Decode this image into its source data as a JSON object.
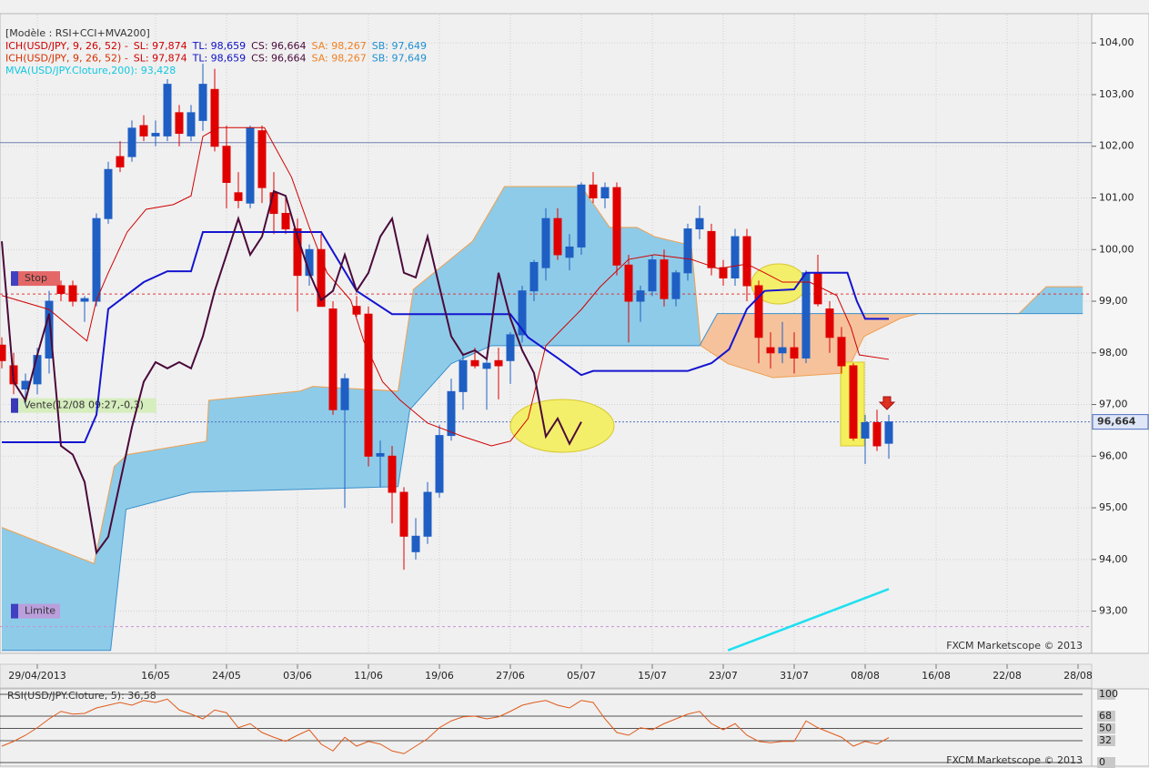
{
  "chart_data": {
    "type": "candlestick",
    "header": "[Modèle : RSI+CCI+MVA200]",
    "indicator_legend": [
      [
        {
          "text": "ICH(USD/JPY, 9, 26, 52) -",
          "color": "#d00000"
        },
        {
          "text": "SL: 97,874",
          "color": "#d00000"
        },
        {
          "text": "TL: 98,659",
          "color": "#1010c8"
        },
        {
          "text": "CS: 96,664",
          "color": "#4a0a3a"
        },
        {
          "text": "SA: 98,267",
          "color": "#f08020"
        },
        {
          "text": "SB: 97,649",
          "color": "#2090d0"
        }
      ],
      [
        {
          "text": "ICH(USD/JPY, 9, 26, 52) -",
          "color": "#d83000"
        },
        {
          "text": "SL: 97,874",
          "color": "#d00000"
        },
        {
          "text": "TL: 98,659",
          "color": "#1010c8"
        },
        {
          "text": "CS: 96,664",
          "color": "#4a0a3a"
        },
        {
          "text": "SA: 98,267",
          "color": "#f08020"
        },
        {
          "text": "SB: 97,649",
          "color": "#2090d0"
        }
      ],
      [
        {
          "text": "MVA(USD/JPY.Cloture,200): 93,428",
          "color": "#10c8e0"
        }
      ]
    ],
    "categories": [
      null,
      null,
      null,
      "29/04/2013",
      null,
      null,
      null,
      null,
      null,
      null,
      null,
      null,
      null,
      "16/05",
      null,
      null,
      null,
      null,
      null,
      "24/05",
      null,
      null,
      null,
      null,
      null,
      "03/06",
      null,
      null,
      null,
      null,
      null,
      "11/06",
      null,
      null,
      null,
      null,
      null,
      "19/06",
      null,
      null,
      null,
      null,
      null,
      "27/06",
      null,
      null,
      null,
      null,
      null,
      "05/07",
      null,
      null,
      null,
      null,
      null,
      "15/07",
      null,
      null,
      null,
      null,
      null,
      "23/07",
      null,
      null,
      null,
      null,
      null,
      "31/07",
      null,
      null,
      null,
      null,
      null,
      "08/08",
      null,
      null,
      null,
      null,
      null,
      "16/08",
      null,
      null,
      null,
      null,
      null,
      "22/08",
      null,
      null,
      null,
      null,
      null,
      "28/08",
      null
    ],
    "open": [
      98.15,
      97.75,
      97.3,
      97.4,
      97.9,
      99.3,
      99.3,
      99.0,
      99.0,
      100.6,
      101.8,
      101.8,
      102.4,
      102.2,
      102.2,
      102.65,
      102.2,
      102.5,
      103.1,
      102.0,
      101.1,
      100.9,
      102.3,
      101.1,
      100.7,
      100.4,
      99.5,
      100.0,
      98.85,
      96.9,
      98.9,
      98.75,
      96.0,
      96.0,
      95.3,
      94.15,
      94.45,
      95.3,
      96.4,
      97.25,
      97.85,
      97.7,
      97.85,
      97.85,
      98.35,
      99.2,
      99.65,
      100.6,
      99.85,
      100.05,
      101.25,
      101.0,
      101.2,
      99.7,
      99.0,
      99.2,
      99.8,
      99.05,
      99.55,
      100.4,
      100.35,
      99.65,
      99.45,
      100.25,
      99.3,
      98.1,
      98.0,
      98.1,
      97.9,
      99.55,
      98.85,
      98.3,
      97.75,
      96.35,
      96.65,
      96.25,
      null,
      null,
      null,
      null,
      null,
      null,
      null,
      null,
      null,
      null,
      null,
      null,
      null,
      null,
      null,
      null,
      null
    ],
    "high": [
      98.3,
      98.0,
      97.6,
      98.1,
      99.2,
      99.4,
      99.4,
      99.1,
      100.7,
      101.7,
      102.1,
      102.5,
      102.6,
      102.5,
      103.3,
      102.8,
      102.8,
      103.6,
      103.5,
      102.4,
      101.5,
      102.4,
      102.4,
      101.5,
      101.0,
      100.6,
      100.1,
      100.3,
      99.0,
      97.6,
      99.1,
      98.9,
      96.3,
      96.2,
      95.4,
      94.8,
      95.5,
      96.6,
      97.5,
      98.0,
      98.1,
      97.9,
      98.1,
      98.4,
      99.3,
      99.8,
      100.8,
      100.8,
      100.3,
      101.3,
      101.5,
      101.3,
      101.3,
      99.9,
      99.3,
      99.9,
      100.0,
      99.6,
      100.5,
      100.85,
      100.5,
      99.8,
      100.4,
      100.4,
      99.4,
      98.4,
      98.6,
      98.4,
      99.6,
      99.9,
      99.0,
      98.5,
      97.8,
      96.8,
      96.9,
      96.8,
      null,
      null,
      null,
      null,
      null,
      null,
      null,
      null,
      null,
      null,
      null,
      null,
      null,
      null,
      null,
      null,
      null
    ],
    "low": [
      97.7,
      97.2,
      97.0,
      97.2,
      97.6,
      99.0,
      98.9,
      98.6,
      98.9,
      100.5,
      101.5,
      101.7,
      102.1,
      102.0,
      102.1,
      102.0,
      102.1,
      102.3,
      101.9,
      100.8,
      100.8,
      100.8,
      100.9,
      100.3,
      100.3,
      98.8,
      99.3,
      98.9,
      96.8,
      95.0,
      98.7,
      95.8,
      95.4,
      94.7,
      93.8,
      94.0,
      94.3,
      95.2,
      96.3,
      96.9,
      97.7,
      96.9,
      97.1,
      97.4,
      98.2,
      99.0,
      99.4,
      99.8,
      99.6,
      99.9,
      100.9,
      100.8,
      99.5,
      98.2,
      98.6,
      99.1,
      98.9,
      98.9,
      99.4,
      100.2,
      99.5,
      99.3,
      99.3,
      99.0,
      97.8,
      97.7,
      97.8,
      97.6,
      97.8,
      98.9,
      98.0,
      97.6,
      96.3,
      95.85,
      96.1,
      95.95,
      null,
      null,
      null,
      null,
      null,
      null,
      null,
      null,
      null,
      null,
      null,
      null,
      null,
      null,
      null,
      null,
      null
    ],
    "close": [
      97.85,
      97.4,
      97.45,
      97.95,
      99.0,
      99.15,
      99.0,
      99.05,
      100.6,
      101.55,
      101.6,
      102.35,
      102.2,
      102.25,
      103.2,
      102.25,
      102.65,
      103.2,
      102.0,
      101.3,
      100.95,
      102.35,
      101.2,
      100.7,
      100.4,
      99.5,
      100.0,
      98.9,
      96.9,
      97.5,
      98.75,
      96.0,
      96.05,
      95.3,
      94.45,
      94.45,
      95.3,
      96.4,
      97.25,
      97.85,
      97.75,
      97.8,
      97.75,
      98.35,
      99.2,
      99.75,
      100.6,
      99.9,
      100.05,
      101.25,
      101.0,
      101.2,
      99.7,
      99.0,
      99.2,
      99.8,
      99.05,
      99.55,
      100.4,
      100.6,
      99.65,
      99.45,
      100.25,
      99.3,
      98.3,
      98.0,
      98.1,
      97.9,
      99.55,
      98.95,
      98.3,
      97.75,
      96.35,
      96.65,
      96.2,
      96.664,
      null,
      null,
      null,
      null,
      null,
      null,
      null,
      null,
      null,
      null,
      null,
      null,
      null,
      null,
      null,
      null,
      null
    ],
    "up_color": "#1f5fc4",
    "down_color": "#e00000",
    "ylim": [
      92.2,
      104.55
    ],
    "yticks": [
      {
        "value": 93,
        "label": "93,00"
      },
      {
        "value": 94,
        "label": "94,00"
      },
      {
        "value": 95,
        "label": "95,00"
      },
      {
        "value": 96,
        "label": "96,00"
      },
      {
        "value": 97,
        "label": "97,00"
      },
      {
        "value": 98,
        "label": "98,00"
      },
      {
        "value": 99,
        "label": "99,00"
      },
      {
        "value": 100,
        "label": "100,00"
      },
      {
        "value": 101,
        "label": "101,00"
      },
      {
        "value": 102,
        "label": "102,00"
      },
      {
        "value": 103,
        "label": "103,00"
      },
      {
        "value": 104,
        "label": "104,00"
      }
    ],
    "grid": true,
    "cloud": {
      "a": {
        "color": "#f0a050",
        "x": [
          0,
          7.8,
          9.5,
          10.6,
          17.3,
          17.5,
          25.2,
          26.3,
          33.5,
          34.8,
          39.8,
          42.5,
          49,
          51.4,
          53.7,
          55.2,
          58.3,
          59.1,
          61.4,
          65.2,
          71.4,
          72.9,
          76,
          77.5,
          86,
          88.3,
          91.4
        ],
        "values": [
          94.62,
          93.92,
          95.8,
          96.03,
          96.29,
          97.08,
          97.26,
          97.35,
          97.26,
          99.23,
          100.16,
          101.22,
          101.22,
          100.43,
          100.43,
          100.25,
          100.08,
          98.14,
          97.79,
          97.52,
          97.61,
          98.32,
          98.67,
          98.76,
          98.76,
          99.28,
          99.28
        ]
      },
      "b": {
        "color": "#3a90cc",
        "x": [
          0,
          9.2,
          10.5,
          16,
          33.5,
          34.5,
          38,
          41.4,
          59,
          60.5,
          91.4
        ],
        "values": [
          92.24,
          92.24,
          94.97,
          95.3,
          95.41,
          96.9,
          97.79,
          98.14,
          98.14,
          98.76,
          98.76
        ]
      },
      "up_fill": "#8ecbe8",
      "down_fill": "#f5c29c"
    },
    "overlays": [
      {
        "color": "#1414d0",
        "x": [
          0,
          7,
          8,
          9,
          12,
          14,
          16,
          17,
          27,
          30,
          33,
          43,
          44.5,
          47,
          49,
          50,
          58,
          60,
          61.5,
          63,
          64.5,
          67,
          68,
          71.5,
          72.3,
          73,
          75
        ],
        "values": [
          96.27,
          96.27,
          96.8,
          98.85,
          99.37,
          99.58,
          99.58,
          100.34,
          100.34,
          99.2,
          98.75,
          98.75,
          98.3,
          97.9,
          97.57,
          97.65,
          97.65,
          97.8,
          98.07,
          98.85,
          99.2,
          99.23,
          99.55,
          99.55,
          99.0,
          98.659,
          98.659
        ]
      },
      {
        "color": "#d00000",
        "x": [
          0,
          4,
          7.2,
          8,
          9,
          10.6,
          12.2,
          14.5,
          16,
          17,
          18.3,
          22.2,
          24.5,
          26,
          27.5,
          29.5,
          30.6,
          32.2,
          33.7,
          36,
          39,
          41.4,
          43,
          44.5,
          46,
          49,
          50.6,
          53,
          55.2,
          58.3,
          60.6,
          63,
          64.5,
          66,
          68.3,
          70.6,
          71.8,
          72.5,
          75
        ],
        "values": [
          99.11,
          98.84,
          98.23,
          99.02,
          99.55,
          100.34,
          100.78,
          100.87,
          101.04,
          102.19,
          102.36,
          102.36,
          101.4,
          100.43,
          99.55,
          99.02,
          98.23,
          97.44,
          97.08,
          96.64,
          96.38,
          96.2,
          96.29,
          96.73,
          98.14,
          98.84,
          99.28,
          99.81,
          99.9,
          99.81,
          99.63,
          99.72,
          99.55,
          99.37,
          99.37,
          99.11,
          98.49,
          97.96,
          97.874
        ]
      },
      {
        "color": "#4a0a3a",
        "x": [
          0,
          1,
          2,
          3,
          4,
          5,
          6,
          7,
          8,
          9,
          10,
          11,
          12,
          13,
          14,
          15,
          16,
          17,
          18,
          19,
          20,
          21,
          22,
          23,
          24,
          25,
          26,
          27,
          28,
          29,
          30,
          31,
          32,
          33,
          34,
          35,
          36,
          37,
          38,
          39,
          40,
          41,
          42,
          43,
          44,
          45,
          46,
          47,
          48,
          49
        ],
        "values": [
          100.16,
          97.44,
          97.08,
          97.96,
          98.76,
          96.2,
          96.03,
          95.5,
          94.13,
          94.44,
          95.5,
          96.56,
          97.44,
          97.82,
          97.7,
          97.82,
          97.7,
          98.32,
          99.2,
          99.9,
          100.6,
          99.9,
          100.25,
          101.13,
          101.04,
          100.25,
          99.55,
          99.02,
          99.2,
          99.9,
          99.2,
          99.55,
          100.25,
          100.6,
          99.55,
          99.46,
          100.25,
          99.28,
          98.32,
          97.96,
          98.05,
          97.88,
          99.55,
          98.67,
          98.05,
          97.61,
          96.38,
          96.73,
          96.24,
          96.664
        ]
      },
      {
        "color": "#20e0f0",
        "x": [
          61.4,
          75
        ],
        "values": [
          92.24,
          93.428
        ]
      }
    ],
    "hline": {
      "value": 102.07,
      "color": "#7080b0"
    },
    "levels": [
      {
        "value": 99.14,
        "label": "Stop",
        "color": "#e03a3a"
      },
      {
        "value": 92.7,
        "label": "Limite",
        "color": "#c890d8"
      }
    ],
    "order": {
      "text": "Vente(12/08 09:27,-0,3)",
      "value": 96.98
    },
    "last_price": {
      "value": 96.664,
      "label": "96,664",
      "color": "#5070c0"
    },
    "watermark": "FXCM Marketscope © 2013",
    "rsi": {
      "title": "RSI(USD/JPY.Cloture, 5): 36,58",
      "color": "#e05a1a",
      "values": [
        24,
        31,
        40,
        51,
        64,
        75,
        71,
        72,
        80,
        84,
        88,
        84,
        91,
        88,
        93,
        77,
        71,
        64,
        77,
        73,
        51,
        57,
        44,
        37,
        31,
        40,
        48,
        27,
        17,
        37,
        24,
        31,
        27,
        17,
        13,
        24,
        35,
        51,
        61,
        67,
        68,
        64,
        67,
        75,
        84,
        88,
        91,
        84,
        80,
        91,
        88,
        64,
        44,
        40,
        51,
        48,
        57,
        64,
        71,
        75,
        57,
        48,
        57,
        40,
        31,
        29,
        31,
        31,
        61,
        51,
        44,
        37,
        24,
        31,
        27,
        36.58
      ],
      "ylim": [
        0,
        100
      ],
      "yticks": [
        0,
        32,
        50,
        68,
        100
      ],
      "watermark": "FXCM Marketscope © 2013"
    }
  }
}
